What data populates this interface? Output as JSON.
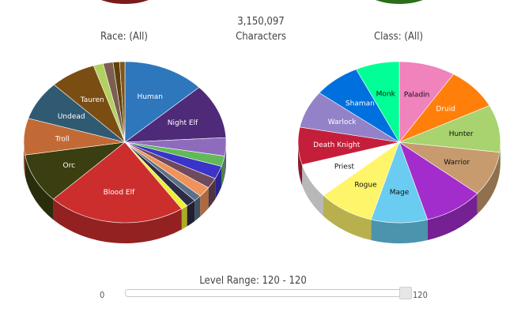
{
  "header": {
    "total_count": "3,150,097",
    "total_label": "Characters"
  },
  "slider": {
    "title": "Level Range: 120 - 120",
    "min_label": "0",
    "max_label": "120",
    "range_min": 0,
    "range_max": 120,
    "value_low": 120,
    "value_high": 120
  },
  "chart_data": [
    {
      "type": "pie",
      "title": "Race: (All)",
      "slices": [
        {
          "label": "Human",
          "value": 12.5,
          "color": "#2e77bd"
        },
        {
          "label": "Night Elf",
          "value": 10.5,
          "color": "#4e2a78"
        },
        {
          "label": "",
          "value": 3.5,
          "color": "#8f6bbd"
        },
        {
          "label": "",
          "value": 2.0,
          "color": "#63b95a"
        },
        {
          "label": "",
          "value": 2.5,
          "color": "#3a34c8"
        },
        {
          "label": "",
          "value": 2.0,
          "color": "#6e4a5c"
        },
        {
          "label": "",
          "value": 2.0,
          "color": "#f0935a"
        },
        {
          "label": "",
          "value": 1.2,
          "color": "#5a6f8a"
        },
        {
          "label": "",
          "value": 1.5,
          "color": "#2c2c44"
        },
        {
          "label": "",
          "value": 1.0,
          "color": "#efef30"
        },
        {
          "label": "Blood Elf",
          "value": 21.0,
          "color": "#cc2e2e"
        },
        {
          "label": "Orc",
          "value": 9.5,
          "color": "#3b3e10"
        },
        {
          "label": "Troll",
          "value": 7.0,
          "color": "#c26a35"
        },
        {
          "label": "Undead",
          "value": 7.5,
          "color": "#2f5a72"
        },
        {
          "label": "Tauren",
          "value": 7.0,
          "color": "#7a4d12"
        },
        {
          "label": "",
          "value": 1.5,
          "color": "#b3d160"
        },
        {
          "label": "",
          "value": 1.5,
          "color": "#7d5f52"
        },
        {
          "label": "",
          "value": 1.0,
          "color": "#5f4208"
        },
        {
          "label": "",
          "value": 0.8,
          "color": "#80541c"
        }
      ]
    },
    {
      "type": "pie",
      "title": "Class: (All)",
      "slices": [
        {
          "label": "Paladin",
          "value": 9.0,
          "color": "#f082bc"
        },
        {
          "label": "Druid",
          "value": 8.5,
          "color": "#ff7f0a"
        },
        {
          "label": "Hunter",
          "value": 9.5,
          "color": "#a8d36e"
        },
        {
          "label": "Warrior",
          "value": 9.0,
          "color": "#c79b6e"
        },
        {
          "label": "",
          "value": 9.5,
          "color": "#a22dcc"
        },
        {
          "label": "Mage",
          "value": 9.0,
          "color": "#69ccf0"
        },
        {
          "label": "Rogue",
          "value": 9.0,
          "color": "#fff56a"
        },
        {
          "label": "Priest",
          "value": 7.0,
          "color": "#ffffff"
        },
        {
          "label": "Death Knight",
          "value": 7.5,
          "color": "#c41e3a"
        },
        {
          "label": "Warlock",
          "value": 7.5,
          "color": "#9482c9"
        },
        {
          "label": "Shaman",
          "value": 7.5,
          "color": "#0070de"
        },
        {
          "label": "Monk",
          "value": 7.0,
          "color": "#00ff96"
        }
      ]
    }
  ]
}
